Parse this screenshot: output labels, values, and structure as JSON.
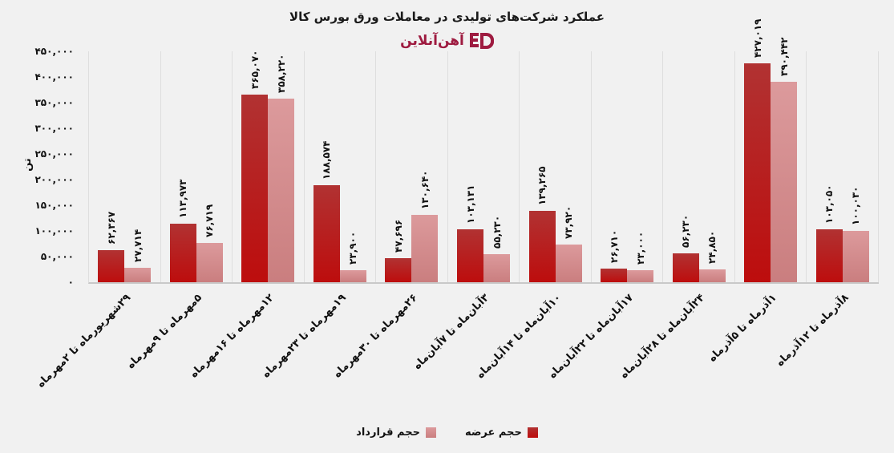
{
  "header": {
    "title": "عملکرد شرکت‌های تولیدی در معاملات ورق بورس کالا",
    "logo_text": "آهن‌آنلاین",
    "logo_color": "#9e1b40"
  },
  "chart_data": {
    "type": "bar",
    "title": "عملکرد شرکت‌های تولیدی در معاملات ورق بورس کالا",
    "xlabel": "",
    "ylabel": "تن",
    "ylim": [
      0,
      450000
    ],
    "ytick_step": 50000,
    "ytick_labels": [
      "۴۵۰,۰۰۰",
      "۴۰۰,۰۰۰",
      "۳۵۰,۰۰۰",
      "۳۰۰,۰۰۰",
      "۲۵۰,۰۰۰",
      "۲۰۰,۰۰۰",
      "۱۵۰,۰۰۰",
      "۱۰۰,۰۰۰",
      "۵۰,۰۰۰",
      "۰"
    ],
    "grid": "vertical-only",
    "legend_position": "bottom-center",
    "categories": [
      "۲۹شهریورماه تا ۲مهرماه",
      "۵مهرماه تا ۹مهرماه",
      "۱۲مهرماه تا ۱۶مهرماه",
      "۱۹مهرماه تا ۲۳مهرماه",
      "۲۶مهرماه تا ۳۰مهرماه",
      "۳آبان‌ماه تا ۷آبان‌ماه",
      "۱۰آبان‌ماه تا ۱۴آبان‌ماه",
      "۱۷آبان‌ماه تا ۲۲آبان‌ماه",
      "۲۴آبان‌ماه تا ۲۸آبان‌ماه",
      "۱آذرماه تا ۵آذرماه",
      "۸آذرماه تا ۱۲آذرماه"
    ],
    "series": [
      {
        "name": "حجم عرضه",
        "color_top": "#b13232",
        "color_bottom": "#bd0d0d",
        "legend_color": "#bd0d0d",
        "values": [
          62367,
          113973,
          365070,
          188574,
          47696,
          103131,
          139265,
          26710,
          56230,
          427019,
          103050
        ],
        "labels": [
          "۶۲,۳۶۷",
          "۱۱۳,۹۷۳",
          "۳۶۵,۰۷۰",
          "۱۸۸,۵۷۴",
          "۴۷,۶۹۶",
          "۱۰۳,۱۳۱",
          "۱۳۹,۲۶۵",
          "۲۶,۷۱۰",
          "۵۶,۲۳۰",
          "۴۲۷,۰۱۹",
          "۱۰۳,۰۵۰"
        ]
      },
      {
        "name": "حجم قرارداد",
        "color_top": "#dc9a9c",
        "color_bottom": "#ca7e7f",
        "legend_color": "#d59190",
        "values": [
          27714,
          76719,
          358220,
          23900,
          130640,
          55230,
          73920,
          23000,
          24850,
          390442,
          100030
        ],
        "labels": [
          "۲۷,۷۱۴",
          "۷۶,۷۱۹",
          "۳۵۸,۲۲۰",
          "۲۳,۹۰۰",
          "۱۳۰,۶۴۰",
          "۵۵,۲۳۰",
          "۷۳,۹۲۰",
          "۲۳,۰۰۰",
          "۲۴,۸۵۰",
          "۳۹۰,۴۴۲",
          "۱۰۰,۰۳۰"
        ]
      }
    ]
  }
}
